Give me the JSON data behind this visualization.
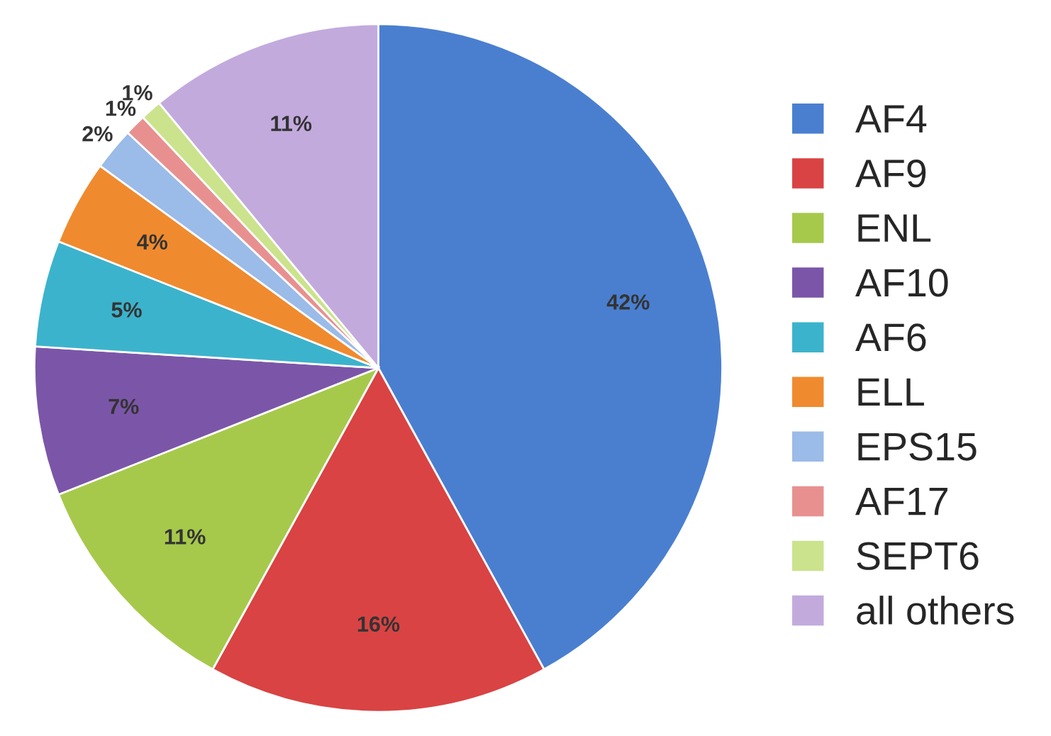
{
  "chart_data": {
    "type": "pie",
    "categories": [
      "AF4",
      "AF9",
      "ENL",
      "AF10",
      "AF6",
      "ELL",
      "EPS15",
      "AF17",
      "SEPT6",
      "all others"
    ],
    "values": [
      42,
      16,
      11,
      7,
      5,
      4,
      2,
      1,
      1,
      11
    ],
    "colors": [
      "#4a7fd0",
      "#d94343",
      "#a6c94c",
      "#7b56a8",
      "#3cb3cc",
      "#f08a2e",
      "#9bbbe8",
      "#e89090",
      "#cbe38c",
      "#c2aadd"
    ],
    "value_labels": [
      "42%",
      "16%",
      "11%",
      "7%",
      "5%",
      "4%",
      "2%",
      "1%",
      "1%",
      "11%"
    ],
    "legend": "right"
  }
}
